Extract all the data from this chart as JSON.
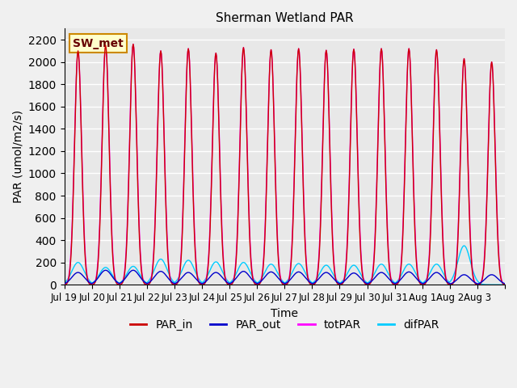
{
  "title": "Sherman Wetland PAR",
  "ylabel": "PAR (umol/m2/s)",
  "xlabel": "Time",
  "ylim": [
    0,
    2300
  ],
  "yticks": [
    0,
    200,
    400,
    600,
    800,
    1000,
    1200,
    1400,
    1600,
    1800,
    2000,
    2200
  ],
  "bg_color": "#e8e8e8",
  "plot_bg_color": "#e8e8e8",
  "grid_color": "white",
  "colors": {
    "PAR_in": "#cc0000",
    "PAR_out": "#0000cc",
    "totPAR": "#ff00ff",
    "difPAR": "#00ccff"
  },
  "annotation_text": "SW_met",
  "annotation_bg": "#ffffcc",
  "annotation_border": "#cc8800",
  "n_days": 16,
  "start_day": 0,
  "points_per_day": 48,
  "day_labels": [
    "Jul 19",
    "Jul 20",
    "Jul 21",
    "Jul 22",
    "Jul 23",
    "Jul 24",
    "Jul 25",
    "Jul 26",
    "Jul 27",
    "Jul 28",
    "Jul 29",
    "Jul 30",
    "Jul 31",
    "Aug 1",
    "Aug 2",
    "Aug 3"
  ],
  "par_in_peaks": [
    2100,
    2150,
    2160,
    2100,
    2120,
    2080,
    2130,
    2110,
    2120,
    2105,
    2115,
    2120,
    2120,
    2110,
    2030,
    2000
  ],
  "par_out_peaks": [
    110,
    130,
    130,
    120,
    110,
    110,
    120,
    115,
    115,
    110,
    105,
    110,
    115,
    110,
    90,
    90
  ],
  "totpar_peaks": [
    2100,
    2150,
    2160,
    2100,
    2120,
    2080,
    2130,
    2110,
    2120,
    2105,
    2115,
    2120,
    2120,
    2110,
    2030,
    2000
  ],
  "difpar_peaks": [
    200,
    155,
    165,
    230,
    220,
    205,
    200,
    185,
    190,
    175,
    175,
    185,
    185,
    185,
    350,
    0
  ]
}
